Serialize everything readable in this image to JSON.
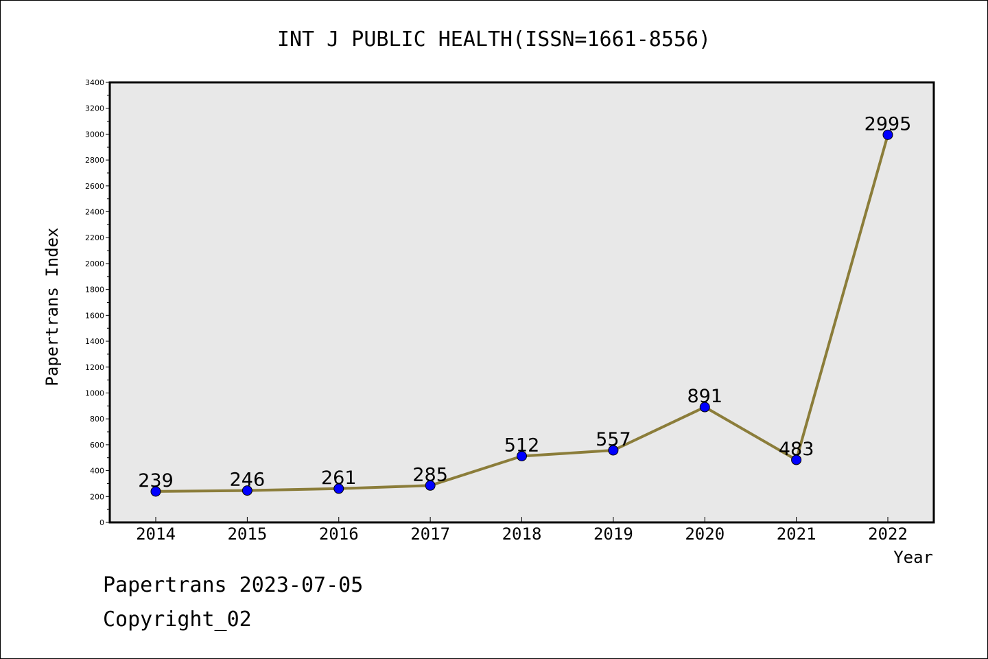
{
  "chart_data": {
    "type": "line",
    "title": "INT J PUBLIC HEALTH(ISSN=1661-8556)",
    "xlabel": "Year",
    "ylabel": "Papertrans Index",
    "categories": [
      "2014",
      "2015",
      "2016",
      "2017",
      "2018",
      "2019",
      "2020",
      "2021",
      "2022"
    ],
    "series": [
      {
        "name": "Papertrans Index",
        "values": [
          239,
          246,
          261,
          285,
          512,
          557,
          891,
          483,
          2995
        ],
        "data_labels": [
          "239",
          "246",
          "261",
          "285",
          "512",
          "557",
          "891",
          "483",
          "2995"
        ]
      }
    ],
    "ylim": [
      0,
      3400
    ],
    "y_ticks": [
      "0",
      "200",
      "400",
      "600",
      "800",
      "1000",
      "1200",
      "1400",
      "1600",
      "1800",
      "2000",
      "2200",
      "2400",
      "2600",
      "2800",
      "3000",
      "3200",
      "3400"
    ],
    "grid": false,
    "legend": "none",
    "colors": {
      "line": "#8b7d3a",
      "marker": "#0000ff",
      "plot_background": "#e8e8e8"
    }
  },
  "footer": {
    "source": "Papertrans 2023-07-05",
    "copyright": "Copyright_02"
  }
}
